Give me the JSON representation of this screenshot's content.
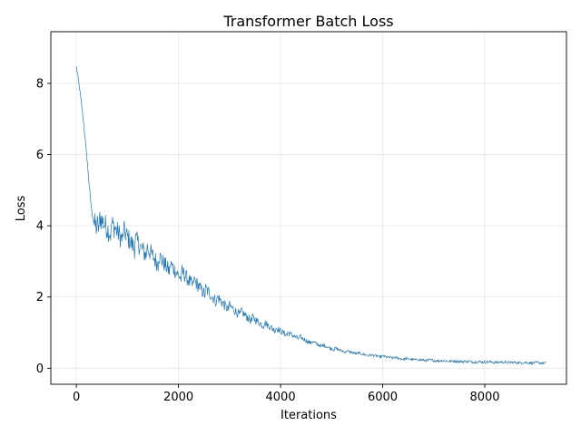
{
  "chart_data": {
    "type": "line",
    "title": "Transformer Batch Loss",
    "xlabel": "Iterations",
    "ylabel": "Loss",
    "xlim": [
      -500,
      9600
    ],
    "ylim": [
      -0.45,
      9.45
    ],
    "xticks": [
      0,
      2000,
      4000,
      6000,
      8000
    ],
    "xtick_labels": [
      "0",
      "2000",
      "4000",
      "6000",
      "8000"
    ],
    "yticks": [
      0,
      2,
      4,
      6,
      8
    ],
    "ytick_labels": [
      "0",
      "2",
      "4",
      "6",
      "8"
    ],
    "grid": true,
    "line_color": "#1f77b4",
    "series": [
      {
        "x": [
          0,
          50,
          100,
          150,
          200,
          250,
          300,
          350,
          400,
          450,
          500,
          600,
          700,
          800,
          900,
          1000,
          1100,
          1200,
          1300,
          1400,
          1500,
          1600,
          1700,
          1800,
          1900,
          2000,
          2100,
          2200,
          2300,
          2400,
          2500,
          2600,
          2700,
          2800,
          2900,
          3000,
          3200,
          3400,
          3600,
          3800,
          4000,
          4200,
          4400,
          4600,
          4800,
          5000,
          5200,
          5400,
          5600,
          5800,
          6000,
          6200,
          6400,
          6600,
          6800,
          7000,
          7200,
          7400,
          7600,
          7800,
          8000,
          8200,
          8400,
          8600,
          8800,
          9000,
          9200
        ],
        "y": [
          9.0,
          8.5,
          7.9,
          7.2,
          6.4,
          5.5,
          4.7,
          4.3,
          4.2,
          4.15,
          4.1,
          4.05,
          3.95,
          3.9,
          3.8,
          3.7,
          3.6,
          3.5,
          3.42,
          3.3,
          3.2,
          3.1,
          3.0,
          2.9,
          2.8,
          2.7,
          2.62,
          2.52,
          2.42,
          2.32,
          2.2,
          2.12,
          2.02,
          1.92,
          1.82,
          1.72,
          1.58,
          1.42,
          1.3,
          1.18,
          1.05,
          0.95,
          0.85,
          0.74,
          0.65,
          0.57,
          0.5,
          0.45,
          0.4,
          0.36,
          0.33,
          0.3,
          0.27,
          0.25,
          0.23,
          0.22,
          0.21,
          0.2,
          0.19,
          0.18,
          0.18,
          0.17,
          0.17,
          0.16,
          0.16,
          0.15,
          0.15
        ]
      }
    ]
  }
}
